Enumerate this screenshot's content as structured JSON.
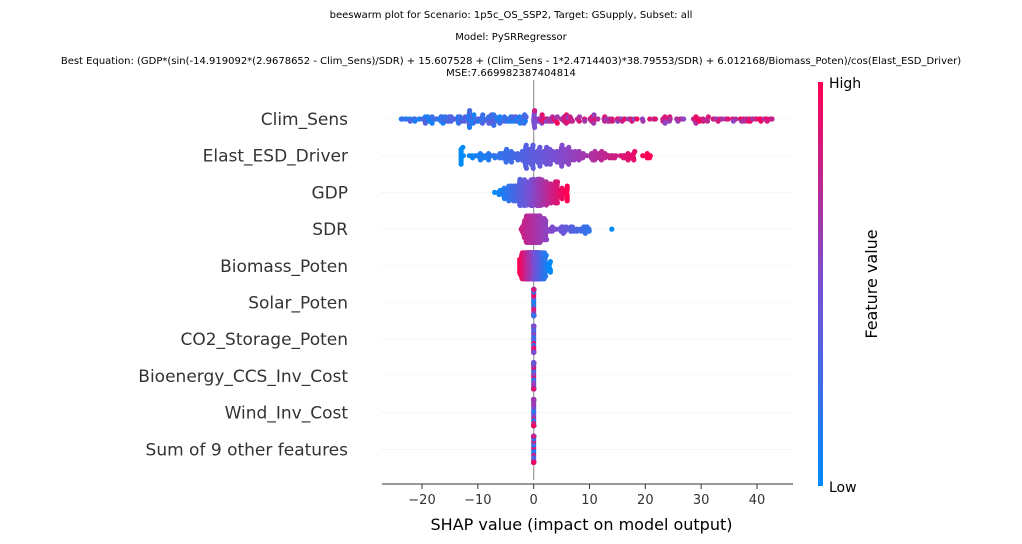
{
  "title_lines": [
    "beeswarm plot for Scenario: 1p5c_OS_SSP2, Target: GSupply, Subset: all",
    "Model: PySRRegressor",
    "Best Equation: (GDP*(sin(-14.919092*(2.9678652 - Clim_Sens)/SDR) + 15.607528 + (Clim_Sens - 1*2.4714403)*38.79553/SDR) + 6.012168/Biomass_Poten)/cos(Elast_ESD_Driver)",
    "MSE:7.669982387404814"
  ],
  "chart_data": {
    "type": "scatter",
    "subtype": "shap-beeswarm",
    "xlabel": "SHAP value (impact on model output)",
    "xlim": [
      -27,
      46
    ],
    "xticks": [
      -20,
      -10,
      0,
      10,
      20,
      30,
      40
    ],
    "features": [
      {
        "name": "Clim_Sens",
        "range": [
          -24,
          43
        ],
        "dist": "bimodal"
      },
      {
        "name": "Elast_ESD_Driver",
        "range": [
          -13,
          21
        ],
        "dist": "spread"
      },
      {
        "name": "GDP",
        "range": [
          -7,
          6
        ],
        "dist": "center"
      },
      {
        "name": "SDR",
        "range": [
          -6,
          14
        ],
        "dist": "skewright"
      },
      {
        "name": "Biomass_Poten",
        "range": [
          -2.5,
          3
        ],
        "dist": "tight"
      },
      {
        "name": "Solar_Poten",
        "range": [
          -0.1,
          0.1
        ],
        "dist": "zero"
      },
      {
        "name": "CO2_Storage_Poten",
        "range": [
          -0.1,
          0.1
        ],
        "dist": "zero"
      },
      {
        "name": "Bioenergy_CCS_Inv_Cost",
        "range": [
          -0.1,
          0.1
        ],
        "dist": "zero"
      },
      {
        "name": "Wind_Inv_Cost",
        "range": [
          -0.1,
          0.1
        ],
        "dist": "zero"
      },
      {
        "name": "Sum of 9 other features",
        "range": [
          -0.1,
          0.1
        ],
        "dist": "zero"
      }
    ],
    "colorbar": {
      "title": "Feature value",
      "high_label": "High",
      "low_label": "Low",
      "low_color": "#008bfb",
      "mid_color": "#7a4fd4",
      "high_color": "#ff0052"
    },
    "grid": false,
    "legend": "colorbar-right"
  }
}
